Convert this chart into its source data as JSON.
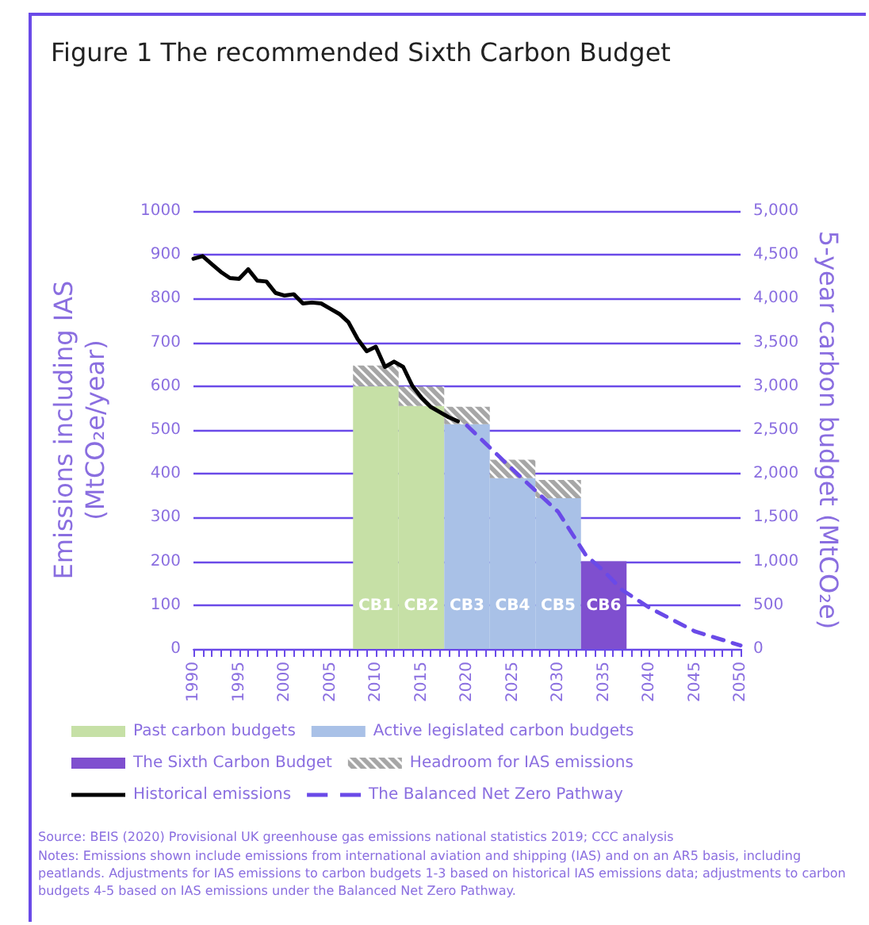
{
  "chart_data": {
    "type": "bar",
    "title": "Figure 1 The recommended Sixth Carbon Budget",
    "ylabel": "Emissions including IAS\n(MtCO₂e/year)",
    "y2label": "5-year carbon budget (MtCO₂e)",
    "stacked": true,
    "marker": "none",
    "grid": "y",
    "legend": "bottom",
    "xlim": [
      1990,
      2050
    ],
    "xticks": [
      1990,
      {
        "value": 1991,
        "label": null
      },
      {
        "value": 1992,
        "label": null
      },
      {
        "value": 1993,
        "label": null
      },
      {
        "value": 1994,
        "label": null
      },
      1995,
      {
        "value": 1996,
        "label": null
      },
      {
        "value": 1997,
        "label": null
      },
      {
        "value": 1998,
        "label": null
      },
      {
        "value": 1999,
        "label": null
      },
      2000,
      {
        "value": 2001,
        "label": null
      },
      {
        "value": 2002,
        "label": null
      },
      {
        "value": 2003,
        "label": null
      },
      {
        "value": 2004,
        "label": null
      },
      2005,
      {
        "value": 2006,
        "label": null
      },
      {
        "value": 2007,
        "label": null
      },
      {
        "value": 2008,
        "label": null
      },
      {
        "value": 2009,
        "label": null
      },
      2010,
      {
        "value": 2011,
        "label": null
      },
      {
        "value": 2012,
        "label": null
      },
      {
        "value": 2013,
        "label": null
      },
      {
        "value": 2014,
        "label": null
      },
      2015,
      {
        "value": 2016,
        "label": null
      },
      {
        "value": 2017,
        "label": null
      },
      {
        "value": 2018,
        "label": null
      },
      {
        "value": 2019,
        "label": null
      },
      2020,
      {
        "value": 2021,
        "label": null
      },
      {
        "value": 2022,
        "label": null
      },
      {
        "value": 2023,
        "label": null
      },
      {
        "value": 2024,
        "label": null
      },
      2025,
      {
        "value": 2026,
        "label": null
      },
      {
        "value": 2027,
        "label": null
      },
      {
        "value": 2028,
        "label": null
      },
      {
        "value": 2029,
        "label": null
      },
      2030,
      {
        "value": 2031,
        "label": null
      },
      {
        "value": 2032,
        "label": null
      },
      {
        "value": 2033,
        "label": null
      },
      {
        "value": 2034,
        "label": null
      },
      2035,
      {
        "value": 2036,
        "label": null
      },
      {
        "value": 2037,
        "label": null
      },
      {
        "value": 2038,
        "label": null
      },
      {
        "value": 2039,
        "label": null
      },
      2040,
      {
        "value": 2041,
        "label": null
      },
      {
        "value": 2042,
        "label": null
      },
      {
        "value": 2043,
        "label": null
      },
      {
        "value": 2044,
        "label": null
      },
      2045,
      {
        "value": 2046,
        "label": null
      },
      {
        "value": 2047,
        "label": null
      },
      {
        "value": 2048,
        "label": null
      },
      {
        "value": 2049,
        "label": null
      },
      2050
    ],
    "ylim": [
      0,
      1000
    ],
    "yticks": [
      0,
      100,
      200,
      300,
      400,
      500,
      600,
      700,
      800,
      900,
      1000
    ],
    "y2lim": [
      0,
      5000
    ],
    "y2ticks": [
      0,
      500,
      {
        "value": 1000,
        "label": "1,000"
      },
      {
        "value": 1500,
        "label": "1,500"
      },
      {
        "value": 2000,
        "label": "2,000"
      },
      {
        "value": 2500,
        "label": "2,500"
      },
      {
        "value": 3000,
        "label": "3,000"
      },
      {
        "value": 3500,
        "label": "3,500"
      },
      {
        "value": 4000,
        "label": "4,000"
      },
      {
        "value": 4500,
        "label": "4,500"
      },
      {
        "value": 5000,
        "label": "5,000"
      }
    ],
    "x": [
      2010,
      2015,
      2020,
      2025,
      2030,
      2035
    ],
    "series": [
      {
        "name": "Past carbon budgets",
        "color": "#c6e0a6",
        "values": [
          600,
          555,
          null,
          null,
          null,
          null
        ],
        "value_labels": [
          "CB1",
          "CB2",
          null,
          null,
          null,
          null
        ]
      },
      {
        "name": "Active legislated carbon budgets",
        "color": "#a9c1e7",
        "values": [
          null,
          null,
          513,
          390,
          344,
          null
        ],
        "value_labels": [
          null,
          null,
          "CB3",
          "CB4",
          "CB5",
          null
        ]
      },
      {
        "name": "The Sixth Carbon Budget",
        "color": "#7f4fcf",
        "values": [
          null,
          null,
          null,
          null,
          null,
          200
        ],
        "value_labels": [
          null,
          null,
          null,
          null,
          null,
          "CB6"
        ]
      },
      {
        "name": "Headroom for IAS emissions",
        "color": "#a6a6a6",
        "values": [
          47,
          44,
          40,
          42,
          42,
          null
        ]
      },
      {
        "name": "Historical emissions",
        "type": "line",
        "color": "#000000",
        "line_style": "solid",
        "x": [
          1990,
          1991,
          1992,
          1993,
          1994,
          1995,
          1996,
          1997,
          1998,
          1999,
          2000,
          2001,
          2002,
          2003,
          2004,
          2005,
          2006,
          2007,
          2008,
          2009,
          2010,
          2011,
          2012,
          2013,
          2014,
          2015,
          2016,
          2017,
          2018,
          2019
        ],
        "values": [
          891,
          897,
          879,
          861,
          847,
          845,
          867,
          841,
          839,
          813,
          807,
          810,
          789,
          791,
          789,
          777,
          765,
          746,
          708,
          680,
          690,
          644,
          656,
          644,
          601,
          574,
          553,
          541,
          529,
          520
        ]
      },
      {
        "name": "The Balanced Net Zero Pathway",
        "type": "line",
        "color": "#6a4ae8",
        "line_style": "dashed",
        "x": [
          2020,
          2025,
          2030,
          2033,
          2035,
          2037,
          2040,
          2045,
          2050
        ],
        "values": [
          510,
          410,
          313,
          215,
          178,
          135,
          94,
          40,
          8
        ]
      }
    ],
    "annotations": [
      "Source: BEIS (2020) Provisional UK greenhouse gas emissions national statistics 2019; CCC analysis",
      "Notes: Emissions shown include emissions from international aviation and shipping (IAS) and on an AR5 basis, including peatlands. Adjustments for IAS emissions to carbon budgets 1-3 based on historical IAS emissions data; adjustments to carbon budgets 4-5 based on IAS emissions under the Balanced Net Zero Pathway."
    ]
  }
}
